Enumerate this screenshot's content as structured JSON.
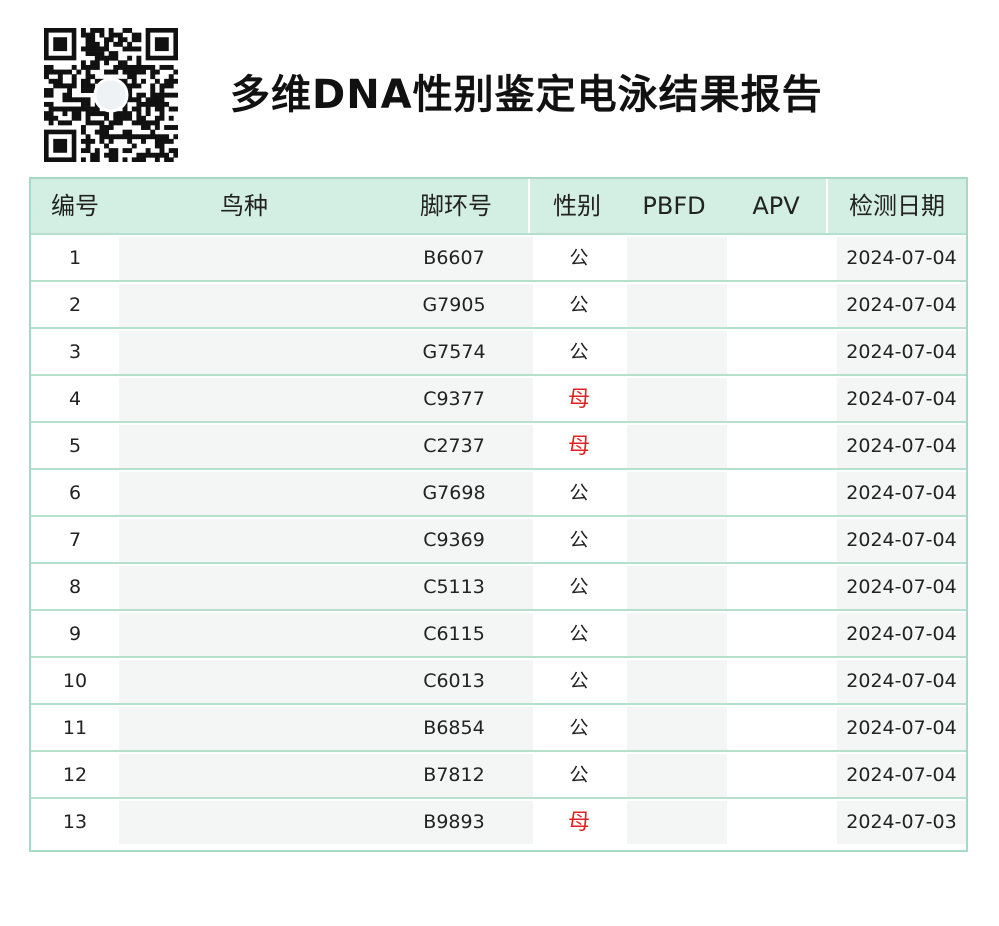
{
  "title": "多维DNA性别鉴定电泳结果报告",
  "colors": {
    "header_bg": "#d3efe3",
    "border": "#a8d9c4",
    "female": "#e02222"
  },
  "table": {
    "headers": {
      "no": "编号",
      "species": "鸟种",
      "ring": "脚环号",
      "sex": "性别",
      "pbfd": "PBFD",
      "apv": "APV",
      "date": "检测日期"
    },
    "rows": [
      {
        "no": "1",
        "species": "",
        "ring": "B6607",
        "sex": "公",
        "pbfd": "",
        "apv": "",
        "date": "2024-07-04"
      },
      {
        "no": "2",
        "species": "",
        "ring": "G7905",
        "sex": "公",
        "pbfd": "",
        "apv": "",
        "date": "2024-07-04"
      },
      {
        "no": "3",
        "species": "",
        "ring": "G7574",
        "sex": "公",
        "pbfd": "",
        "apv": "",
        "date": "2024-07-04"
      },
      {
        "no": "4",
        "species": "",
        "ring": "C9377",
        "sex": "母",
        "pbfd": "",
        "apv": "",
        "date": "2024-07-04"
      },
      {
        "no": "5",
        "species": "",
        "ring": "C2737",
        "sex": "母",
        "pbfd": "",
        "apv": "",
        "date": "2024-07-04"
      },
      {
        "no": "6",
        "species": "",
        "ring": "G7698",
        "sex": "公",
        "pbfd": "",
        "apv": "",
        "date": "2024-07-04"
      },
      {
        "no": "7",
        "species": "",
        "ring": "C9369",
        "sex": "公",
        "pbfd": "",
        "apv": "",
        "date": "2024-07-04"
      },
      {
        "no": "8",
        "species": "",
        "ring": "C5113",
        "sex": "公",
        "pbfd": "",
        "apv": "",
        "date": "2024-07-04"
      },
      {
        "no": "9",
        "species": "",
        "ring": "C6115",
        "sex": "公",
        "pbfd": "",
        "apv": "",
        "date": "2024-07-04"
      },
      {
        "no": "10",
        "species": "",
        "ring": "C6013",
        "sex": "公",
        "pbfd": "",
        "apv": "",
        "date": "2024-07-04"
      },
      {
        "no": "11",
        "species": "",
        "ring": "B6854",
        "sex": "公",
        "pbfd": "",
        "apv": "",
        "date": "2024-07-04"
      },
      {
        "no": "12",
        "species": "",
        "ring": "B7812",
        "sex": "公",
        "pbfd": "",
        "apv": "",
        "date": "2024-07-04"
      },
      {
        "no": "13",
        "species": "",
        "ring": "B9893",
        "sex": "母",
        "pbfd": "",
        "apv": "",
        "date": "2024-07-03"
      }
    ]
  }
}
